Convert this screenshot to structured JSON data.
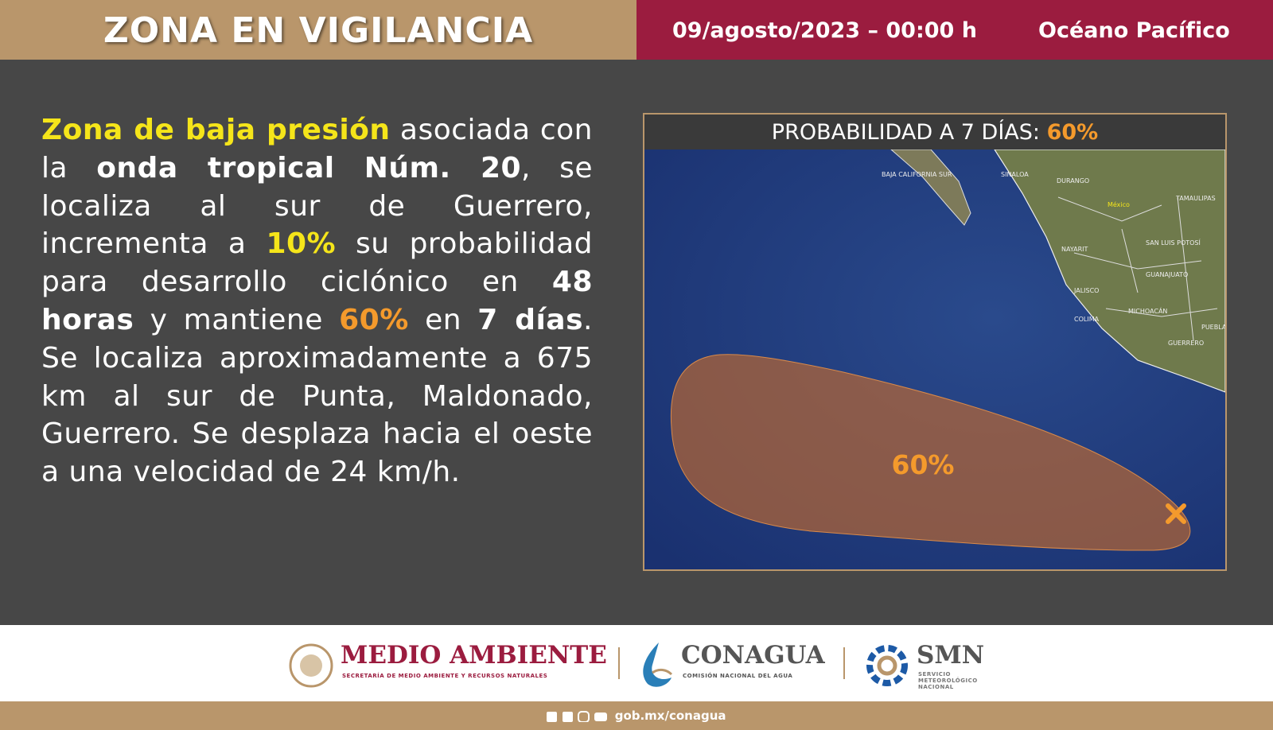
{
  "header": {
    "title": "ZONA EN VIGILANCIA",
    "date": "09/agosto/2023 – 00:00 h",
    "region": "Océano Pacífico"
  },
  "body": {
    "segments": [
      "Zona de baja presión",
      " asociada con la ",
      "onda tropical Núm. 20",
      ", se localiza al sur de Guerrero, incrementa a ",
      "10%",
      " su probabilidad para desarrollo ciclónico en ",
      "48 horas",
      " y mantiene ",
      "60%",
      " en ",
      "7 días",
      ". Se localiza aproximadamente a 675 km al sur de Punta, Maldonado, Guerrero. Se desplaza hacia el oeste a una velocidad de 24 km/h."
    ]
  },
  "map": {
    "title": "PROBABILIDAD A 7 DÍAS: ",
    "title_value": "60%",
    "area_label": "60%",
    "places": [
      "BAJA CALIFORNIA SUR",
      "SINALOA",
      "DURANGO",
      "TAMAULIPAS",
      "México",
      "NAYARIT",
      "SAN LUIS POTOSÍ",
      "JALISCO",
      "GUANAJUATO",
      "COLIMA",
      "MICHOACÁN",
      "PUEBLA",
      "GUERRERO"
    ]
  },
  "footer": {
    "semarnat": "MEDIO AMBIENTE",
    "semarnat_sub": "SECRETARÍA DE MEDIO AMBIENTE Y RECURSOS NATURALES",
    "conagua": "CONAGUA",
    "conagua_sub": "COMISIÓN NACIONAL DEL AGUA",
    "smn": "SMN",
    "smn_sub": "SERVICIO METEOROLÓGICO NACIONAL",
    "url": "gob.mx/conagua"
  }
}
